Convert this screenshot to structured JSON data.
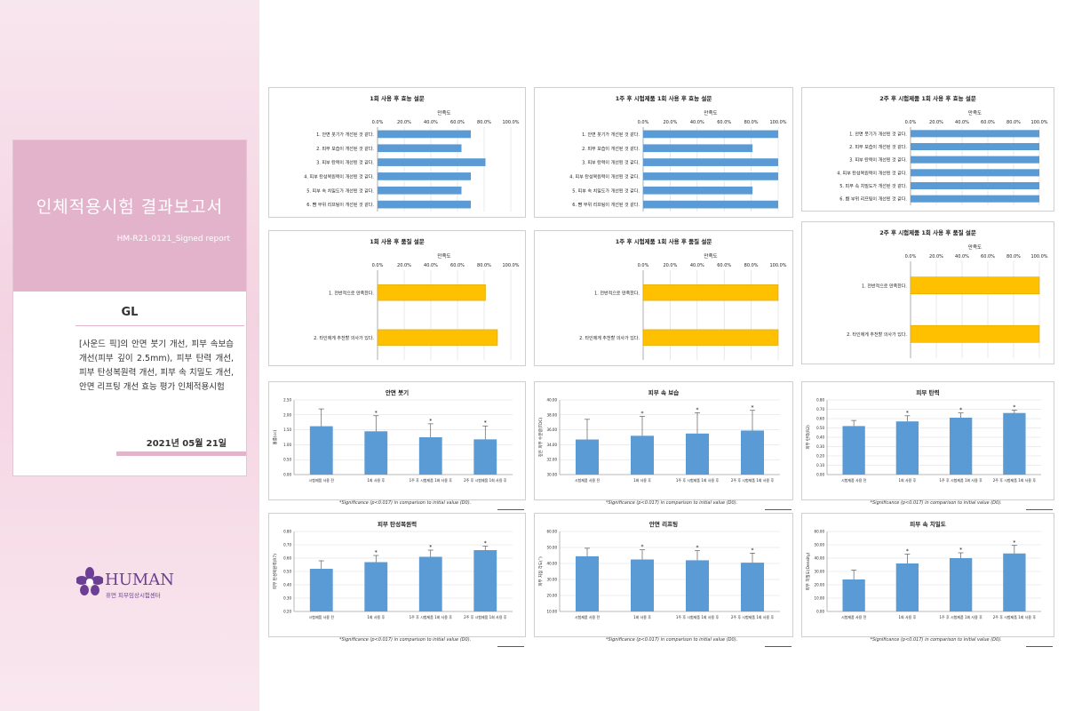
{
  "cover": {
    "title": "인체적용시험 결과보고서",
    "subtitle": "HM-R21-0121_Signed report",
    "client": "GL",
    "description": "[사운드 픽]의 안면 붓기 개선, 피부 속보습 개선(피부 깊이 2.5mm), 피부 탄력 개선, 피부 탄성복원력 개선, 피부 속 치밀도 개선, 안면 리프팅 개선 효능 평가 인체적용시험",
    "date": "2021년 05월 21일"
  },
  "logo": {
    "name": "HUMAN",
    "subtitle": "휴먼 피부임상시험센터"
  },
  "colors": {
    "bar_blue": "#5b9bd5",
    "bar_gold": "#ffc000",
    "cover_pink": "#e2b3cb",
    "logo_purple": "#6b3f93"
  },
  "footnote": "*Significance (p<0.017) in comparison to initial value (D0).",
  "chart_data": [
    {
      "type": "bar",
      "orientation": "horizontal",
      "title": "1회 사용 후 효능 설문",
      "xlabel": "만족도",
      "xlim": [
        0,
        100
      ],
      "ticks": [
        "0.0%",
        "20.0%",
        "40.0%",
        "60.0%",
        "80.0%",
        "100.0%"
      ],
      "categories": [
        "1. 안면 붓기가 개선된 것 같다.",
        "2. 피부 보습이 개선된 것 같다.",
        "3. 피부 탄력이 개선된 것 같다.",
        "4. 피부 탄성복원력이 개선된 것 같다.",
        "5. 피부 속 치밀도가 개선된 것 같다.",
        "6. 뺨 부위 리프팅이 개선된 것 같다."
      ],
      "values": [
        70,
        63,
        81,
        70,
        63,
        70
      ]
    },
    {
      "type": "bar",
      "orientation": "horizontal",
      "title": "1주 후 시험제품 1회 사용 후 효능 설문",
      "xlabel": "만족도",
      "xlim": [
        0,
        100
      ],
      "ticks": [
        "0.0%",
        "20.0%",
        "40.0%",
        "60.0%",
        "80.0%",
        "100.0%"
      ],
      "categories": [
        "1. 안면 붓기가 개선된 것 같다.",
        "2. 피부 보습이 개선된 것 같다.",
        "3. 피부 탄력이 개선된 것 같다.",
        "4. 피부 탄성복원력이 개선된 것 같다.",
        "5. 피부 속 치밀도가 개선된 것 같다.",
        "6. 뺨 부위 리프팅이 개선된 것 같다."
      ],
      "values": [
        100,
        81,
        100,
        100,
        81,
        100
      ]
    },
    {
      "type": "bar",
      "orientation": "horizontal",
      "title": "2주 후 시험제품 1회 사용 후 효능 설문",
      "xlabel": "만족도",
      "xlim": [
        0,
        100
      ],
      "ticks": [
        "0.0%",
        "20.0%",
        "40.0%",
        "60.0%",
        "80.0%",
        "100.0%"
      ],
      "categories": [
        "1. 안면 붓기가 개선된 것 같다.",
        "2. 피부 보습이 개선된 것 같다.",
        "3. 피부 탄력이 개선된 것 같다.",
        "4. 피부 탄성복원력이 개선된 것 같다.",
        "5. 피부 속 치밀도가 개선된 것 같다.",
        "6. 뺨 부위 리프팅이 개선된 것 같다."
      ],
      "values": [
        100,
        100,
        100,
        100,
        100,
        100
      ]
    },
    {
      "type": "bar",
      "orientation": "horizontal",
      "title": "1회 사용 후 품질 설문",
      "xlabel": "만족도",
      "xlim": [
        0,
        100
      ],
      "ticks": [
        "0.0%",
        "20.0%",
        "40.0%",
        "60.0%",
        "80.0%",
        "100.0%"
      ],
      "categories": [
        "1. 전반적으로 만족한다.",
        "2. 타인에게 추천할 의사가 있다."
      ],
      "values": [
        81,
        90
      ]
    },
    {
      "type": "bar",
      "orientation": "horizontal",
      "title": "1주 후 시험제품 1회 사용 후 품질 설문",
      "xlabel": "만족도",
      "xlim": [
        0,
        100
      ],
      "ticks": [
        "0.0%",
        "20.0%",
        "40.0%",
        "60.0%",
        "80.0%",
        "100.0%"
      ],
      "categories": [
        "1. 전반적으로 만족한다.",
        "2. 타인에게 추천할 의사가 있다."
      ],
      "values": [
        100,
        100
      ]
    },
    {
      "type": "bar",
      "orientation": "horizontal",
      "title": "2주 후 시험제품 1회 사용 후 품질 설문",
      "xlabel": "만족도",
      "xlim": [
        0,
        100
      ],
      "ticks": [
        "0.0%",
        "20.0%",
        "40.0%",
        "60.0%",
        "80.0%",
        "100.0%"
      ],
      "categories": [
        "1. 전반적으로 만족한다.",
        "2. 타인에게 추천할 의사가 있다."
      ],
      "values": [
        100,
        100
      ]
    },
    {
      "type": "bar",
      "orientation": "vertical",
      "title": "안면 붓기",
      "ylabel": "볼륨(cc)",
      "ylim": [
        0,
        2.5
      ],
      "ticks": [
        "0.00",
        "0.50",
        "1.00",
        "1.50",
        "2.00",
        "2.50"
      ],
      "categories": [
        "시험제품 사용 전",
        "1회 사용 후",
        "1주 후 시험제품 1회 사용 후",
        "2주 후 시험제품 1회 사용 후"
      ],
      "values": [
        1.62,
        1.45,
        1.25,
        1.18
      ],
      "errors": [
        0.58,
        0.52,
        0.45,
        0.45
      ],
      "significant": [
        false,
        true,
        true,
        true
      ]
    },
    {
      "type": "bar",
      "orientation": "vertical",
      "title": "피부 속 보습",
      "ylabel": "깊은 피부 수분량(TDC)",
      "ylim": [
        30,
        40
      ],
      "ticks": [
        "30.00",
        "32.00",
        "34.00",
        "36.00",
        "38.00",
        "40.00"
      ],
      "categories": [
        "시험제품 사용 전",
        "1회 사용 후",
        "1주 후 시험제품 1회 사용 후",
        "2주 후 시험제품 1회 사용 후"
      ],
      "values": [
        34.7,
        35.2,
        35.5,
        35.9
      ],
      "errors": [
        2.7,
        2.6,
        2.8,
        2.7
      ],
      "significant": [
        false,
        true,
        true,
        true
      ]
    },
    {
      "type": "bar",
      "orientation": "vertical",
      "title": "피부 탄력",
      "ylabel": "피부 탄력(R2)",
      "ylim": [
        0,
        0.8
      ],
      "ticks": [
        "0.00",
        "0.10",
        "0.20",
        "0.30",
        "0.40",
        "0.50",
        "0.60",
        "0.70",
        "0.80"
      ],
      "categories": [
        "시험제품 사용 전",
        "1회 사용 후",
        "1주 후 시험제품 1회 사용 후",
        "2주 후 시험제품 1회 사용 후"
      ],
      "values": [
        0.52,
        0.57,
        0.61,
        0.66
      ],
      "errors": [
        0.06,
        0.06,
        0.05,
        0.03
      ],
      "significant": [
        false,
        true,
        true,
        true
      ]
    },
    {
      "type": "bar",
      "orientation": "vertical",
      "title": "피부 탄성복원력",
      "ylabel": "피부 탄성복원력(R7)",
      "ylim": [
        0.2,
        0.8
      ],
      "ticks": [
        "0.20",
        "0.30",
        "0.40",
        "0.50",
        "0.60",
        "0.70",
        "0.80"
      ],
      "categories": [
        "시험제품 사용 전",
        "1회 사용 후",
        "1주 후 시험제품 1회 사용 후",
        "2주 후 시험제품 1회 사용 후"
      ],
      "values": [
        0.52,
        0.57,
        0.61,
        0.66
      ],
      "errors": [
        0.06,
        0.05,
        0.05,
        0.03
      ],
      "significant": [
        false,
        true,
        true,
        true
      ]
    },
    {
      "type": "bar",
      "orientation": "vertical",
      "title": "안면 리프팅",
      "ylabel": "피부 처짐 각도(˚)",
      "ylim": [
        10,
        60
      ],
      "ticks": [
        "10.00",
        "20.00",
        "30.00",
        "40.00",
        "50.00",
        "60.00"
      ],
      "categories": [
        "시험제품 사용 전",
        "1회 사용 후",
        "1주 후 시험제품 1회 사용 후",
        "2주 후 시험제품 1회 사용 후"
      ],
      "values": [
        44.5,
        42.5,
        42,
        40.5
      ],
      "errors": [
        5,
        6,
        6,
        6
      ],
      "significant": [
        false,
        true,
        true,
        true
      ]
    },
    {
      "type": "bar",
      "orientation": "vertical",
      "title": "피부 속 치밀도",
      "ylabel": "피부 치밀도(Density)",
      "ylim": [
        0,
        60
      ],
      "ticks": [
        "0.00",
        "10.00",
        "20.00",
        "30.00",
        "40.00",
        "50.00",
        "60.00"
      ],
      "categories": [
        "시험제품 사용 전",
        "1회 사용 후",
        "1주 후 시험제품 1회 사용 후",
        "2주 후 시험제품 1회 사용 후"
      ],
      "values": [
        24,
        36,
        40,
        43.5
      ],
      "errors": [
        7,
        7,
        4,
        6
      ],
      "significant": [
        false,
        true,
        true,
        true
      ]
    }
  ]
}
